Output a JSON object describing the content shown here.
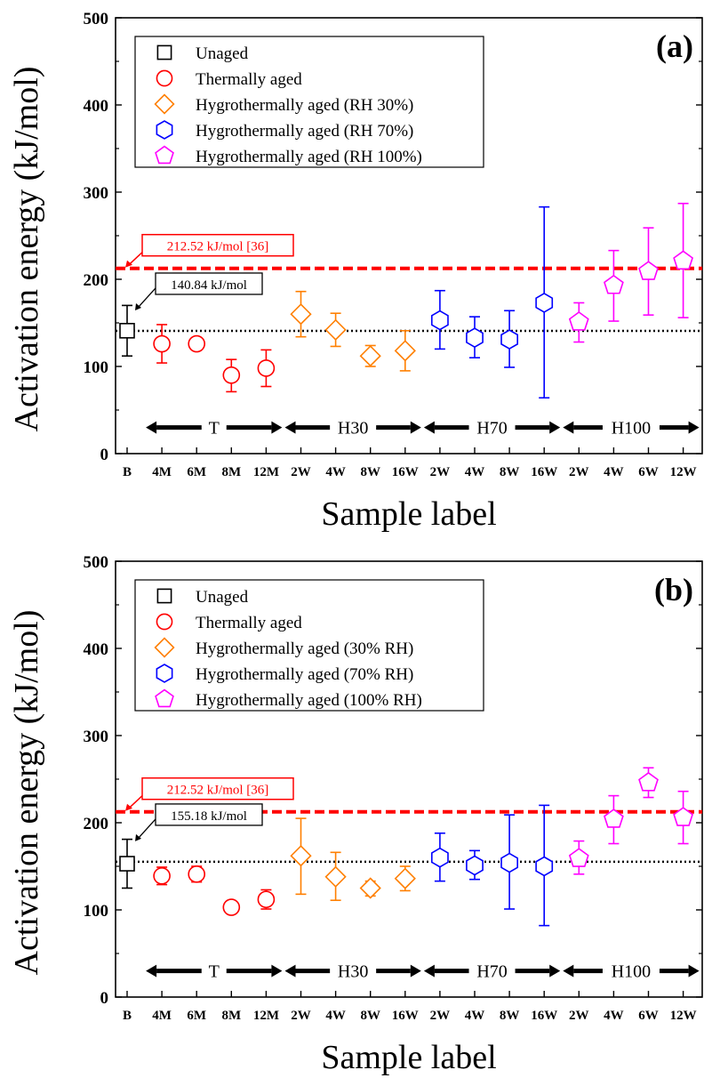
{
  "chart_data": [
    {
      "type": "scatter",
      "panel_label": "(a)",
      "xlabel": "Sample label",
      "ylabel": "Activation energy (kJ/mol)",
      "ylim": [
        0,
        500
      ],
      "yticks": [
        0,
        100,
        200,
        300,
        400,
        500
      ],
      "categories": [
        "B",
        "4M",
        "6M",
        "8M",
        "12M",
        "2W",
        "4W",
        "8W",
        "16W",
        "2W",
        "4W",
        "8W",
        "16W",
        "2W",
        "4W",
        "6W",
        "12W"
      ],
      "reference_line": {
        "value": 212.52,
        "label": "212.52 kJ/mol [36]",
        "color": "#ff0000"
      },
      "baseline_line": {
        "value": 140.84,
        "label": "140.84 kJ/mol",
        "color": "#000000"
      },
      "groups": [
        {
          "label": "T",
          "from": 1,
          "to": 4
        },
        {
          "label": "H30",
          "from": 5,
          "to": 8
        },
        {
          "label": "H70",
          "from": 9,
          "to": 12
        },
        {
          "label": "H100",
          "from": 13,
          "to": 16
        }
      ],
      "series": [
        {
          "name": "Unaged",
          "marker": "square",
          "color": "#000000",
          "points": [
            {
              "i": 0,
              "y": 141,
              "lo": 112,
              "hi": 170
            }
          ]
        },
        {
          "name": "Thermally aged",
          "marker": "circle",
          "color": "#ff0000",
          "points": [
            {
              "i": 1,
              "y": 126,
              "lo": 104,
              "hi": 148
            },
            {
              "i": 2,
              "y": 126,
              "lo": 121,
              "hi": 131
            },
            {
              "i": 3,
              "y": 90,
              "lo": 71,
              "hi": 108
            },
            {
              "i": 4,
              "y": 98,
              "lo": 77,
              "hi": 119
            }
          ]
        },
        {
          "name": "Hygrothermally aged (RH 30%)",
          "marker": "diamond",
          "color": "#ff7f00",
          "points": [
            {
              "i": 5,
              "y": 160,
              "lo": 134,
              "hi": 186
            },
            {
              "i": 6,
              "y": 142,
              "lo": 123,
              "hi": 161
            },
            {
              "i": 7,
              "y": 112,
              "lo": 100,
              "hi": 124
            },
            {
              "i": 8,
              "y": 118,
              "lo": 95,
              "hi": 141
            }
          ]
        },
        {
          "name": "Hygrothermally aged (RH 70%)",
          "marker": "hexagon",
          "color": "#0000ff",
          "points": [
            {
              "i": 9,
              "y": 153,
              "lo": 120,
              "hi": 187
            },
            {
              "i": 10,
              "y": 133,
              "lo": 110,
              "hi": 157
            },
            {
              "i": 11,
              "y": 131,
              "lo": 99,
              "hi": 164
            },
            {
              "i": 12,
              "y": 173,
              "lo": 64,
              "hi": 283
            }
          ]
        },
        {
          "name": "Hygrothermally aged (RH 100%)",
          "marker": "pentagon",
          "color": "#ff00ff",
          "points": [
            {
              "i": 13,
              "y": 151,
              "lo": 128,
              "hi": 173
            },
            {
              "i": 14,
              "y": 193,
              "lo": 152,
              "hi": 233
            },
            {
              "i": 15,
              "y": 209,
              "lo": 159,
              "hi": 259
            },
            {
              "i": 16,
              "y": 221,
              "lo": 156,
              "hi": 287
            }
          ]
        }
      ]
    },
    {
      "type": "scatter",
      "panel_label": "(b)",
      "xlabel": "Sample label",
      "ylabel": "Activation energy (kJ/mol)",
      "ylim": [
        0,
        500
      ],
      "yticks": [
        0,
        100,
        200,
        300,
        400,
        500
      ],
      "categories": [
        "B",
        "4M",
        "6M",
        "8M",
        "12M",
        "2W",
        "4W",
        "8W",
        "16W",
        "2W",
        "4W",
        "8W",
        "16W",
        "2W",
        "4W",
        "6W",
        "12W"
      ],
      "reference_line": {
        "value": 212.52,
        "label": "212.52 kJ/mol [36]",
        "color": "#ff0000"
      },
      "baseline_line": {
        "value": 155.18,
        "label": "155.18 kJ/mol",
        "color": "#000000"
      },
      "groups": [
        {
          "label": "T",
          "from": 1,
          "to": 4
        },
        {
          "label": "H30",
          "from": 5,
          "to": 8
        },
        {
          "label": "H70",
          "from": 9,
          "to": 12
        },
        {
          "label": "H100",
          "from": 13,
          "to": 16
        }
      ],
      "series": [
        {
          "name": "Unaged",
          "marker": "square",
          "color": "#000000",
          "points": [
            {
              "i": 0,
              "y": 153,
              "lo": 125,
              "hi": 181
            }
          ]
        },
        {
          "name": "Thermally aged",
          "marker": "circle",
          "color": "#ff0000",
          "points": [
            {
              "i": 1,
              "y": 139,
              "lo": 129,
              "hi": 149
            },
            {
              "i": 2,
              "y": 141,
              "lo": 132,
              "hi": 150
            },
            {
              "i": 3,
              "y": 103,
              "lo": 98,
              "hi": 108
            },
            {
              "i": 4,
              "y": 112,
              "lo": 101,
              "hi": 123
            }
          ]
        },
        {
          "name": "Hygrothermally aged (30% RH)",
          "marker": "diamond",
          "color": "#ff7f00",
          "points": [
            {
              "i": 5,
              "y": 162,
              "lo": 118,
              "hi": 205
            },
            {
              "i": 6,
              "y": 138,
              "lo": 111,
              "hi": 166
            },
            {
              "i": 7,
              "y": 125,
              "lo": 116,
              "hi": 133
            },
            {
              "i": 8,
              "y": 136,
              "lo": 122,
              "hi": 150
            }
          ]
        },
        {
          "name": "Hygrothermally aged (70% RH)",
          "marker": "hexagon",
          "color": "#0000ff",
          "points": [
            {
              "i": 9,
              "y": 160,
              "lo": 133,
              "hi": 188
            },
            {
              "i": 10,
              "y": 151,
              "lo": 135,
              "hi": 168
            },
            {
              "i": 11,
              "y": 154,
              "lo": 101,
              "hi": 209
            },
            {
              "i": 12,
              "y": 150,
              "lo": 82,
              "hi": 220
            }
          ]
        },
        {
          "name": "Hygrothermally aged (100% RH)",
          "marker": "pentagon",
          "color": "#ff00ff",
          "points": [
            {
              "i": 13,
              "y": 159,
              "lo": 141,
              "hi": 179
            },
            {
              "i": 14,
              "y": 204,
              "lo": 176,
              "hi": 231
            },
            {
              "i": 15,
              "y": 246,
              "lo": 229,
              "hi": 263
            },
            {
              "i": 16,
              "y": 206,
              "lo": 176,
              "hi": 236
            }
          ]
        }
      ]
    }
  ]
}
